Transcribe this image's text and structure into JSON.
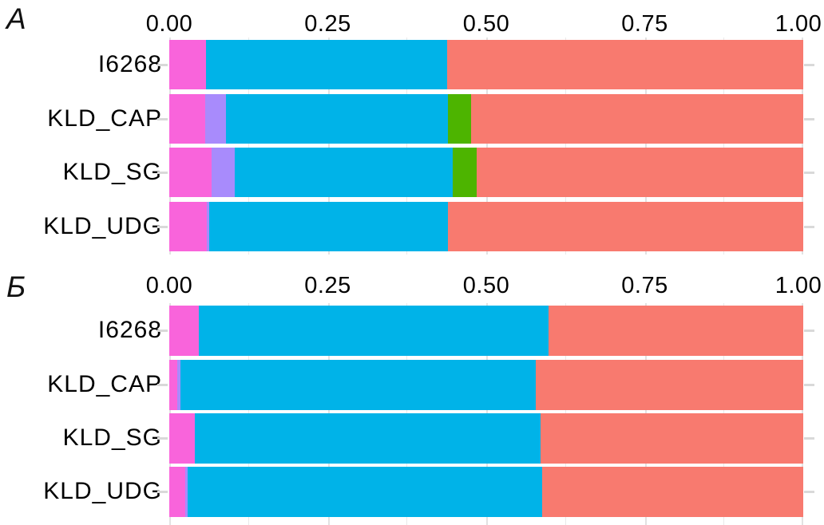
{
  "figure": {
    "background": "#ffffff",
    "colors": {
      "magenta": "#f964db",
      "lavender": "#a88bfc",
      "cyan": "#00b3e8",
      "green": "#4db400",
      "salmon": "#f87a6f",
      "grid_major": "#e2e2e2",
      "grid_minor": "#e9e9e9",
      "tick_mark": "#d9d9d9"
    }
  },
  "chart_data": [
    {
      "type": "bar",
      "orientation": "horizontal",
      "stacked": true,
      "panel_label": "A",
      "xlim": [
        0,
        1
      ],
      "x_ticks": [
        "0.00",
        "0.25",
        "0.50",
        "0.75",
        "1.00"
      ],
      "x_tick_values": [
        0,
        0.25,
        0.5,
        0.75,
        1
      ],
      "grid_minor_values": [
        0.125,
        0.375,
        0.625,
        0.875
      ],
      "legend": "none",
      "categories": [
        "I6268",
        "KLD_CAP",
        "KLD_SG",
        "KLD_UDG"
      ],
      "rows": [
        {
          "label": "I6268",
          "segments": [
            {
              "color": "magenta",
              "value": 0.058
            },
            {
              "color": "cyan",
              "value": 0.38
            },
            {
              "color": "salmon",
              "value": 0.562
            }
          ]
        },
        {
          "label": "KLD_CAP",
          "segments": [
            {
              "color": "magenta",
              "value": 0.057
            },
            {
              "color": "lavender",
              "value": 0.032
            },
            {
              "color": "cyan",
              "value": 0.351
            },
            {
              "color": "green",
              "value": 0.036
            },
            {
              "color": "salmon",
              "value": 0.524
            }
          ]
        },
        {
          "label": "KLD_SG",
          "segments": [
            {
              "color": "magenta",
              "value": 0.067
            },
            {
              "color": "lavender",
              "value": 0.036
            },
            {
              "color": "cyan",
              "value": 0.344
            },
            {
              "color": "green",
              "value": 0.038
            },
            {
              "color": "salmon",
              "value": 0.515
            }
          ]
        },
        {
          "label": "KLD_UDG",
          "segments": [
            {
              "color": "magenta",
              "value": 0.059
            },
            {
              "color": "lavender",
              "value": 0.004
            },
            {
              "color": "cyan",
              "value": 0.377
            },
            {
              "color": "salmon",
              "value": 0.56
            }
          ]
        }
      ]
    },
    {
      "type": "bar",
      "orientation": "horizontal",
      "stacked": true,
      "panel_label": "Б",
      "xlim": [
        0,
        1
      ],
      "x_ticks": [
        "0.00",
        "0.25",
        "0.50",
        "0.75",
        "1.00"
      ],
      "x_tick_values": [
        0,
        0.25,
        0.5,
        0.75,
        1
      ],
      "grid_minor_values": [
        0.125,
        0.375,
        0.625,
        0.875
      ],
      "legend": "none",
      "categories": [
        "I6268",
        "KLD_CAP",
        "KLD_SG",
        "KLD_UDG"
      ],
      "rows": [
        {
          "label": "I6268",
          "segments": [
            {
              "color": "magenta",
              "value": 0.047
            },
            {
              "color": "cyan",
              "value": 0.551
            },
            {
              "color": "salmon",
              "value": 0.402
            }
          ]
        },
        {
          "label": "KLD_CAP",
          "segments": [
            {
              "color": "magenta",
              "value": 0.013
            },
            {
              "color": "lavender",
              "value": 0.005
            },
            {
              "color": "cyan",
              "value": 0.56
            },
            {
              "color": "salmon",
              "value": 0.422
            }
          ]
        },
        {
          "label": "KLD_SG",
          "segments": [
            {
              "color": "magenta",
              "value": 0.04
            },
            {
              "color": "cyan",
              "value": 0.546
            },
            {
              "color": "salmon",
              "value": 0.414
            }
          ]
        },
        {
          "label": "KLD_UDG",
          "segments": [
            {
              "color": "magenta",
              "value": 0.025
            },
            {
              "color": "lavender",
              "value": 0.004
            },
            {
              "color": "cyan",
              "value": 0.559
            },
            {
              "color": "salmon",
              "value": 0.412
            }
          ]
        }
      ]
    }
  ]
}
